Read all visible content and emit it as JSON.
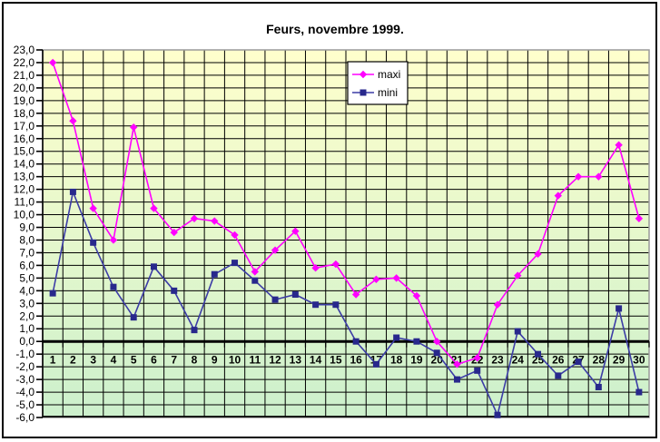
{
  "chart_data": {
    "type": "line",
    "title": "Feurs, novembre 1999.",
    "xlabel": "",
    "ylabel": "",
    "x": [
      1,
      2,
      3,
      4,
      5,
      6,
      7,
      8,
      9,
      10,
      11,
      12,
      13,
      14,
      15,
      16,
      17,
      18,
      19,
      20,
      21,
      22,
      23,
      24,
      25,
      26,
      27,
      28,
      29,
      30
    ],
    "series": [
      {
        "name": "maxi",
        "color": "#ff00ff",
        "marker": "diamond",
        "marker_color": "#ff00ff",
        "values": [
          22.0,
          17.4,
          10.5,
          8.0,
          16.9,
          10.5,
          8.6,
          9.7,
          9.5,
          8.4,
          5.5,
          7.2,
          8.7,
          5.8,
          6.1,
          3.7,
          4.9,
          5.0,
          3.6,
          0.0,
          -1.8,
          -1.3,
          2.9,
          5.2,
          6.9,
          11.5,
          13.0,
          13.0,
          15.5,
          9.7
        ]
      },
      {
        "name": "mini",
        "color": "#3c3ca6",
        "marker": "square",
        "marker_color": "#28288c",
        "values": [
          3.8,
          11.8,
          7.8,
          4.3,
          1.9,
          5.9,
          4.0,
          0.9,
          5.3,
          6.2,
          4.8,
          3.3,
          3.7,
          2.9,
          2.9,
          0.0,
          -1.8,
          0.3,
          0.0,
          -0.9,
          -3.0,
          -2.3,
          -5.8,
          0.8,
          -1.0,
          -2.7,
          -1.6,
          -3.6,
          2.6,
          -4.0
        ]
      }
    ],
    "ylim": [
      -6.0,
      23.0
    ],
    "ytick_step": 1.0,
    "yticks": [
      "23,0",
      "22,0",
      "21,0",
      "20,0",
      "19,0",
      "18,0",
      "17,0",
      "16,0",
      "15,0",
      "14,0",
      "13,0",
      "12,0",
      "11,0",
      "10,0",
      "9,0",
      "8,0",
      "7,0",
      "6,0",
      "5,0",
      "4,0",
      "3,0",
      "2,0",
      "1,0",
      "0,0",
      "-1,0",
      "-2,0",
      "-3,0",
      "-4,0",
      "-5,0",
      "-6,0"
    ],
    "grid": true,
    "legend_position": "inside-top-center",
    "legend_labels": [
      "maxi",
      "mini"
    ],
    "plot_background_top": "#ffffcc",
    "plot_background_bottom": "#ccf0cc",
    "zero_axis": true
  }
}
